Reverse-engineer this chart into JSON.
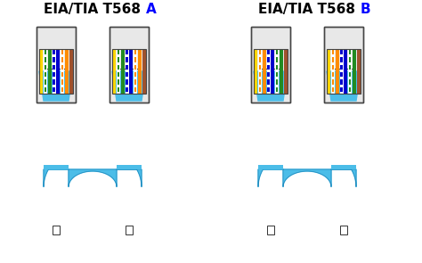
{
  "bg_color": "#FFFFFF",
  "cable_color": "#4BBDE8",
  "cable_color_dark": "#3AA0CC",
  "connector_bg": "#E8E8E8",
  "connector_border": "#444444",
  "title_color": "#000000",
  "title_letter_A_color": "#0000FF",
  "title_letter_B_color": "#0000FF",
  "title_A": "EIA/TIA T568",
  "title_A_letter": "A",
  "title_B": "EIA/TIA T568",
  "title_B_letter": "B",
  "wire_colors_568A": [
    "#FFD700",
    "#FFFFFF",
    "#228B22",
    "#FFFFFF",
    "#0000CC",
    "#FFFFFF",
    "#FF8C00",
    "#A0522D"
  ],
  "wire_stripes_568A": [
    "none",
    "#228B22",
    "none",
    "#0000CC",
    "none",
    "#FF8C00",
    "none",
    "none"
  ],
  "wire_colors_568B": [
    "#FFD700",
    "#FFFFFF",
    "#FF8C00",
    "#FFFFFF",
    "#0000CC",
    "#FFFFFF",
    "#228B22",
    "#A0522D"
  ],
  "wire_stripes_568B": [
    "none",
    "#FF8C00",
    "none",
    "#0000CC",
    "none",
    "#228B22",
    "none",
    "none"
  ]
}
